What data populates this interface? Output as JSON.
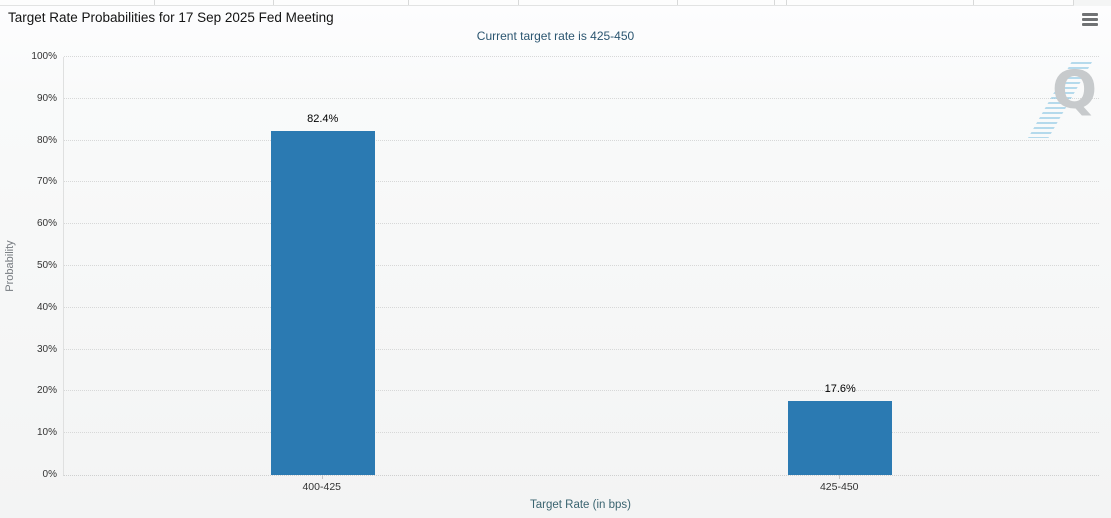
{
  "header": {
    "title": "Target Rate Probabilities for 17 Sep 2025 Fed Meeting",
    "menu_icon": "hamburger-menu-icon"
  },
  "chart_data": {
    "type": "bar",
    "title": "Target Rate Probabilities for 17 Sep 2025 Fed Meeting",
    "subtitle": "Current target rate is 425-450",
    "categories": [
      "400-425",
      "425-450"
    ],
    "values": [
      82.4,
      17.6
    ],
    "value_labels": [
      "82.4%",
      "17.6%"
    ],
    "xlabel": "Target Rate (in bps)",
    "ylabel": "Probability",
    "ylim": [
      0,
      100
    ],
    "ytick_step": 10,
    "ytick_labels": [
      "0%",
      "10%",
      "20%",
      "30%",
      "40%",
      "50%",
      "60%",
      "70%",
      "80%",
      "90%",
      "100%"
    ],
    "grid": "horizontal-dotted",
    "legend": "none",
    "colors": {
      "bar": "#2b7ab2",
      "value_label": "#000000",
      "subtitle": "#2b5570",
      "axis_title": "#3a6470",
      "ylabel": "#767b80",
      "tick_label": "#333333",
      "gridline": "#d7d8d8"
    }
  },
  "watermark": {
    "letter": "Q",
    "color": "#c7cacc",
    "stripe_color": "#90c8e4"
  }
}
